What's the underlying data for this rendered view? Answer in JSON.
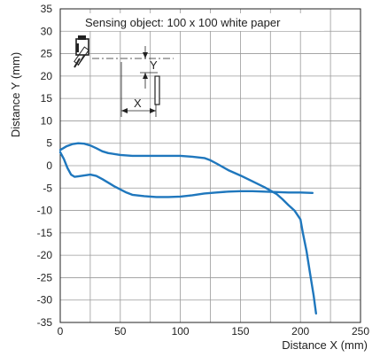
{
  "chart_data": {
    "type": "line",
    "annotation": "Sensing object: 100 x 100 white paper",
    "xlabel": "Distance X (mm)",
    "ylabel": "Distance Y (mm)",
    "xlim": [
      0,
      250
    ],
    "ylim": [
      -35,
      35
    ],
    "xticks": [
      0,
      50,
      100,
      150,
      200,
      250
    ],
    "yticks": [
      35,
      30,
      25,
      20,
      15,
      10,
      5,
      0,
      -5,
      -10,
      -15,
      -20,
      -25,
      -30,
      -35
    ],
    "grid": true,
    "line_color": "#1f77bd",
    "series": [
      {
        "points": [
          [
            0,
            3.5
          ],
          [
            5,
            4.3
          ],
          [
            10,
            4.8
          ],
          [
            15,
            5.0
          ],
          [
            20,
            4.9
          ],
          [
            25,
            4.5
          ],
          [
            30,
            3.9
          ],
          [
            35,
            3.2
          ],
          [
            40,
            2.8
          ],
          [
            50,
            2.4
          ],
          [
            60,
            2.2
          ],
          [
            80,
            2.2
          ],
          [
            100,
            2.2
          ],
          [
            110,
            2.0
          ],
          [
            120,
            1.7
          ],
          [
            125,
            1.2
          ],
          [
            130,
            0.5
          ],
          [
            140,
            -1.0
          ],
          [
            150,
            -2.2
          ],
          [
            160,
            -3.5
          ],
          [
            170,
            -4.8
          ],
          [
            180,
            -6.3
          ],
          [
            185,
            -7.5
          ],
          [
            190,
            -8.8
          ],
          [
            195,
            -10.0
          ],
          [
            200,
            -12.0
          ],
          [
            202,
            -15.0
          ],
          [
            205,
            -19.0
          ],
          [
            208,
            -24.0
          ],
          [
            211,
            -29.0
          ],
          [
            213,
            -33.0
          ]
        ]
      },
      {
        "points": [
          [
            0,
            3.0
          ],
          [
            3,
            1.5
          ],
          [
            6,
            -0.5
          ],
          [
            9,
            -2.0
          ],
          [
            12,
            -2.5
          ],
          [
            15,
            -2.4
          ],
          [
            20,
            -2.2
          ],
          [
            25,
            -2.0
          ],
          [
            30,
            -2.3
          ],
          [
            35,
            -3.0
          ],
          [
            40,
            -3.8
          ],
          [
            45,
            -4.6
          ],
          [
            50,
            -5.3
          ],
          [
            55,
            -6.0
          ],
          [
            60,
            -6.5
          ],
          [
            70,
            -6.8
          ],
          [
            80,
            -7.0
          ],
          [
            90,
            -7.0
          ],
          [
            100,
            -6.9
          ],
          [
            110,
            -6.6
          ],
          [
            120,
            -6.2
          ],
          [
            130,
            -6.0
          ],
          [
            140,
            -5.8
          ],
          [
            150,
            -5.7
          ],
          [
            160,
            -5.7
          ],
          [
            170,
            -5.8
          ],
          [
            180,
            -5.9
          ],
          [
            190,
            -6.0
          ],
          [
            200,
            -6.0
          ],
          [
            210,
            -6.1
          ]
        ]
      }
    ],
    "inset": {
      "x_label": "X",
      "y_label": "Y"
    }
  }
}
